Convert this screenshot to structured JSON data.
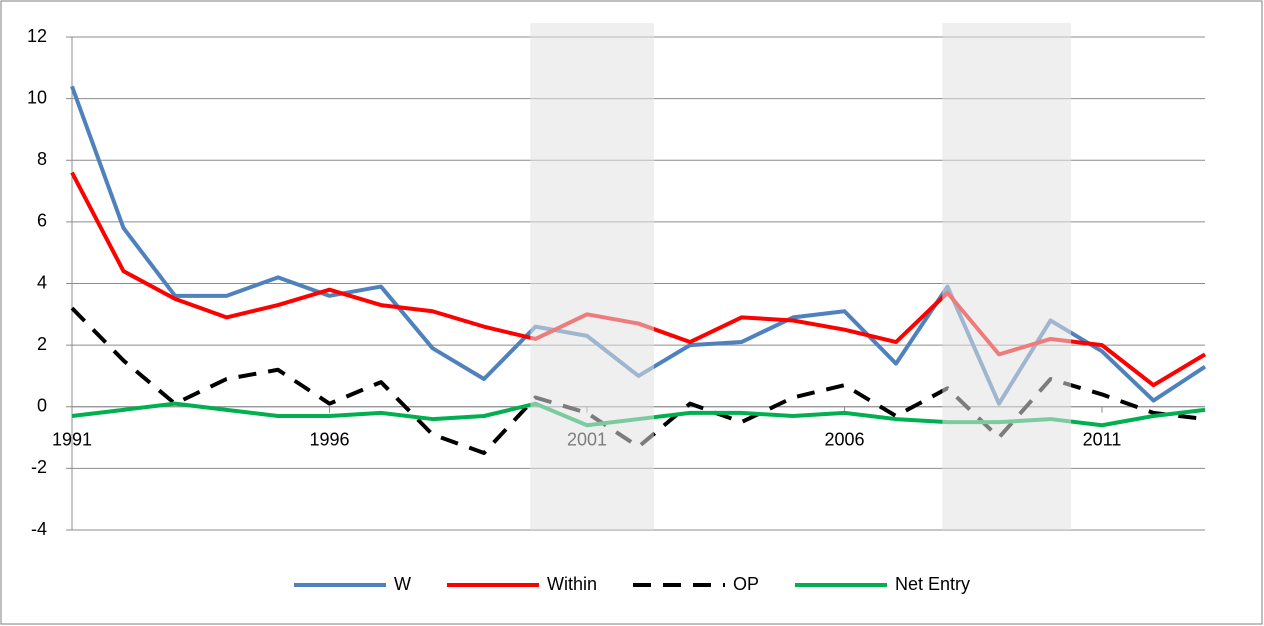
{
  "chart_data": {
    "type": "line",
    "x": [
      1991,
      1992,
      1993,
      1994,
      1995,
      1996,
      1997,
      1998,
      1999,
      2000,
      2001,
      2002,
      2003,
      2004,
      2005,
      2006,
      2007,
      2008,
      2009,
      2010,
      2011,
      2012,
      2013
    ],
    "xlim": [
      1991,
      2013
    ],
    "xticks": [
      1991,
      1996,
      2001,
      2006,
      2011
    ],
    "ylim": [
      -4,
      12
    ],
    "yticks": [
      -4,
      -2,
      0,
      2,
      4,
      6,
      8,
      10,
      12
    ],
    "grid": true,
    "legend": "bottom",
    "shaded": [
      [
        1999.9,
        2002.3
      ],
      [
        2007.9,
        2010.4
      ]
    ],
    "series": [
      {
        "name": "W",
        "color": "#4f81bd",
        "dash": false,
        "values": [
          10.4,
          5.8,
          3.6,
          3.6,
          4.2,
          3.6,
          3.9,
          1.9,
          0.9,
          2.6,
          2.3,
          1.0,
          2.0,
          2.1,
          2.9,
          3.1,
          1.4,
          3.9,
          0.1,
          2.8,
          1.8,
          0.2,
          1.3
        ]
      },
      {
        "name": "Within",
        "color": "#ff0000",
        "dash": false,
        "values": [
          7.6,
          4.4,
          3.5,
          2.9,
          3.3,
          3.8,
          3.3,
          3.1,
          2.6,
          2.2,
          3.0,
          2.7,
          2.1,
          2.9,
          2.8,
          2.5,
          2.1,
          3.7,
          1.7,
          2.2,
          2.0,
          0.7,
          1.7
        ]
      },
      {
        "name": "OP",
        "color": "#000000",
        "dash": true,
        "values": [
          3.2,
          1.5,
          0.1,
          0.9,
          1.2,
          0.1,
          0.8,
          -0.9,
          -1.5,
          0.3,
          -0.2,
          -1.3,
          0.1,
          -0.5,
          0.3,
          0.7,
          -0.3,
          0.6,
          -1.0,
          0.9,
          0.4,
          -0.2,
          -0.4
        ]
      },
      {
        "name": "Net Entry",
        "color": "#00b050",
        "dash": false,
        "values": [
          -0.3,
          -0.1,
          0.1,
          -0.1,
          -0.3,
          -0.3,
          -0.2,
          -0.4,
          -0.3,
          0.1,
          -0.6,
          -0.4,
          -0.2,
          -0.2,
          -0.3,
          -0.2,
          -0.4,
          -0.5,
          -0.5,
          -0.4,
          -0.6,
          -0.3,
          -0.1
        ]
      }
    ]
  }
}
